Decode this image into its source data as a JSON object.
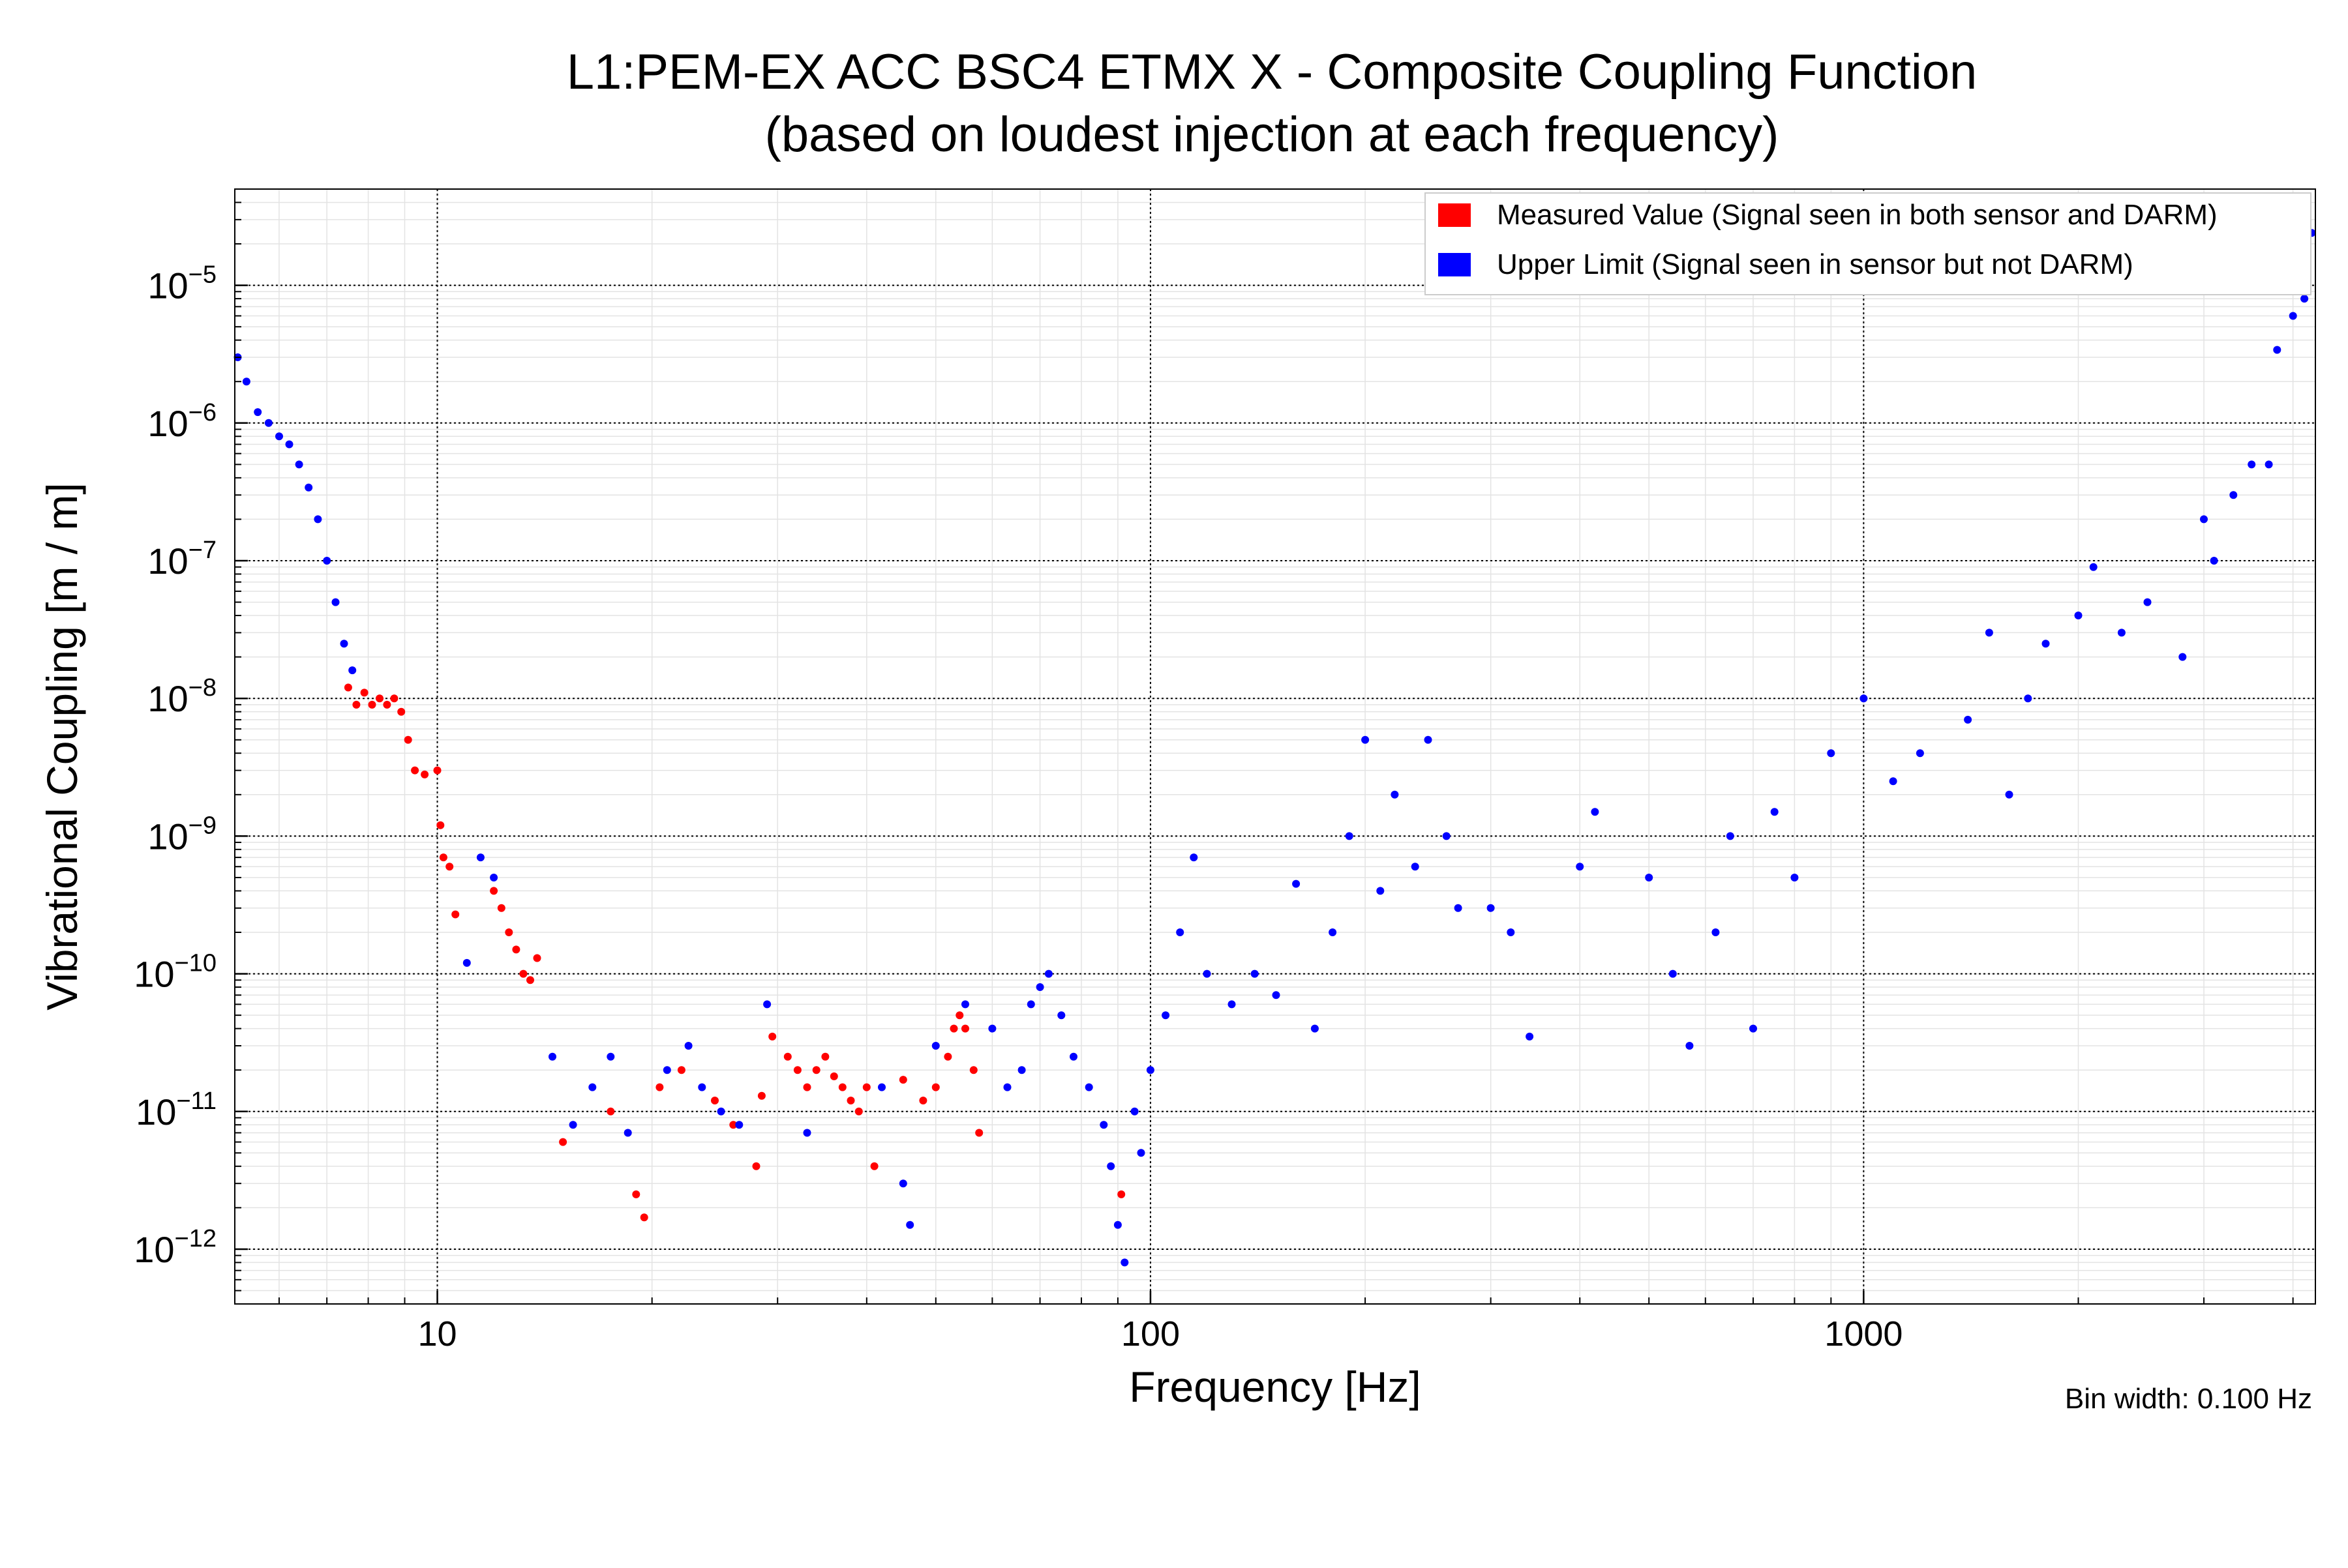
{
  "chart_data": {
    "type": "scatter",
    "title": "L1:PEM-EX ACC BSC4 ETMX X - Composite Coupling Function",
    "subtitle": "(based on loudest injection at each frequency)",
    "xlabel": "Frequency [Hz]",
    "ylabel": "Vibrational Coupling [m / m]",
    "xscale": "log",
    "yscale": "log",
    "xlim": [
      5.2,
      4300
    ],
    "ylim": [
      4e-13,
      5e-05
    ],
    "grid": true,
    "legend_position": "top-right",
    "footnote": "Bin width: 0.100 Hz",
    "x_ticks": [
      {
        "value": 10,
        "label": "10"
      },
      {
        "value": 100,
        "label": "100"
      },
      {
        "value": 1000,
        "label": "1000"
      }
    ],
    "y_ticks": [
      {
        "value": 1e-12,
        "base": "10",
        "exp": "−12"
      },
      {
        "value": 1e-11,
        "base": "10",
        "exp": "−11"
      },
      {
        "value": 1e-10,
        "base": "10",
        "exp": "−10"
      },
      {
        "value": 1e-09,
        "base": "10",
        "exp": "−9"
      },
      {
        "value": 1e-08,
        "base": "10",
        "exp": "−8"
      },
      {
        "value": 1e-07,
        "base": "10",
        "exp": "−7"
      },
      {
        "value": 1e-06,
        "base": "10",
        "exp": "−6"
      },
      {
        "value": 1e-05,
        "base": "10",
        "exp": "−5"
      }
    ],
    "series": [
      {
        "name": "Measured Value (Signal seen in both sensor and DARM)",
        "color": "#ff0000",
        "points": [
          [
            7.5,
            1.2e-08
          ],
          [
            7.7,
            9e-09
          ],
          [
            7.9,
            1.1e-08
          ],
          [
            8.1,
            9e-09
          ],
          [
            8.3,
            1e-08
          ],
          [
            8.5,
            9e-09
          ],
          [
            8.7,
            1e-08
          ],
          [
            8.9,
            8e-09
          ],
          [
            9.1,
            5e-09
          ],
          [
            9.3,
            3e-09
          ],
          [
            9.6,
            2.8e-09
          ],
          [
            10.0,
            3e-09
          ],
          [
            10.1,
            1.2e-09
          ],
          [
            10.2,
            7e-10
          ],
          [
            10.4,
            6e-10
          ],
          [
            10.6,
            2.7e-10
          ],
          [
            12.0,
            4e-10
          ],
          [
            12.3,
            3e-10
          ],
          [
            12.6,
            2e-10
          ],
          [
            12.9,
            1.5e-10
          ],
          [
            13.2,
            1e-10
          ],
          [
            13.5,
            9e-11
          ],
          [
            13.8,
            1.3e-10
          ],
          [
            15.0,
            6e-12
          ],
          [
            17.5,
            1e-11
          ],
          [
            19.0,
            2.5e-12
          ],
          [
            19.5,
            1.7e-12
          ],
          [
            20.5,
            1.5e-11
          ],
          [
            22.0,
            2e-11
          ],
          [
            24.5,
            1.2e-11
          ],
          [
            26.0,
            8e-12
          ],
          [
            28.0,
            4e-12
          ],
          [
            28.5,
            1.3e-11
          ],
          [
            29.5,
            3.5e-11
          ],
          [
            31.0,
            2.5e-11
          ],
          [
            32.0,
            2e-11
          ],
          [
            33.0,
            1.5e-11
          ],
          [
            34.0,
            2e-11
          ],
          [
            35.0,
            2.5e-11
          ],
          [
            36.0,
            1.8e-11
          ],
          [
            37.0,
            1.5e-11
          ],
          [
            38.0,
            1.2e-11
          ],
          [
            39.0,
            1e-11
          ],
          [
            40.0,
            1.5e-11
          ],
          [
            41.0,
            4e-12
          ],
          [
            45.0,
            1.7e-11
          ],
          [
            48.0,
            1.2e-11
          ],
          [
            50.0,
            1.5e-11
          ],
          [
            52.0,
            2.5e-11
          ],
          [
            53.0,
            4e-11
          ],
          [
            54.0,
            5e-11
          ],
          [
            55.0,
            4e-11
          ],
          [
            56.5,
            2e-11
          ],
          [
            57.5,
            7e-12
          ],
          [
            91.0,
            2.5e-12
          ]
        ]
      },
      {
        "name": "Upper Limit (Signal seen in sensor but not DARM)",
        "color": "#0000ff",
        "points": [
          [
            5.25,
            3e-06
          ],
          [
            5.4,
            2e-06
          ],
          [
            5.6,
            1.2e-06
          ],
          [
            5.8,
            1e-06
          ],
          [
            6.0,
            8e-07
          ],
          [
            6.2,
            7e-07
          ],
          [
            6.4,
            5e-07
          ],
          [
            6.6,
            3.4e-07
          ],
          [
            6.8,
            2e-07
          ],
          [
            7.0,
            1e-07
          ],
          [
            7.2,
            5e-08
          ],
          [
            7.4,
            2.5e-08
          ],
          [
            7.6,
            1.6e-08
          ],
          [
            11.0,
            1.2e-10
          ],
          [
            11.5,
            7e-10
          ],
          [
            12.0,
            5e-10
          ],
          [
            14.5,
            2.5e-11
          ],
          [
            15.5,
            8e-12
          ],
          [
            16.5,
            1.5e-11
          ],
          [
            17.5,
            2.5e-11
          ],
          [
            18.5,
            7e-12
          ],
          [
            21.0,
            2e-11
          ],
          [
            22.5,
            3e-11
          ],
          [
            23.5,
            1.5e-11
          ],
          [
            25.0,
            1e-11
          ],
          [
            26.5,
            8e-12
          ],
          [
            29.0,
            6e-11
          ],
          [
            33.0,
            7e-12
          ],
          [
            42.0,
            1.5e-11
          ],
          [
            45.0,
            3e-12
          ],
          [
            46.0,
            1.5e-12
          ],
          [
            50.0,
            3e-11
          ],
          [
            55.0,
            6e-11
          ],
          [
            60.0,
            4e-11
          ],
          [
            63.0,
            1.5e-11
          ],
          [
            66.0,
            2e-11
          ],
          [
            68.0,
            6e-11
          ],
          [
            70.0,
            8e-11
          ],
          [
            72.0,
            1e-10
          ],
          [
            75.0,
            5e-11
          ],
          [
            78.0,
            2.5e-11
          ],
          [
            82.0,
            1.5e-11
          ],
          [
            86.0,
            8e-12
          ],
          [
            88.0,
            4e-12
          ],
          [
            90.0,
            1.5e-12
          ],
          [
            92.0,
            8e-13
          ],
          [
            95.0,
            1e-11
          ],
          [
            97.0,
            5e-12
          ],
          [
            100.0,
            2e-11
          ],
          [
            105.0,
            5e-11
          ],
          [
            110.0,
            2e-10
          ],
          [
            115.0,
            7e-10
          ],
          [
            120.0,
            1e-10
          ],
          [
            130.0,
            6e-11
          ],
          [
            140.0,
            1e-10
          ],
          [
            150.0,
            7e-11
          ],
          [
            160.0,
            4.5e-10
          ],
          [
            170.0,
            4e-11
          ],
          [
            180.0,
            2e-10
          ],
          [
            190.0,
            1e-09
          ],
          [
            200.0,
            5e-09
          ],
          [
            210.0,
            4e-10
          ],
          [
            220.0,
            2e-09
          ],
          [
            235.0,
            6e-10
          ],
          [
            245.0,
            5e-09
          ],
          [
            260.0,
            1e-09
          ],
          [
            270.0,
            3e-10
          ],
          [
            300.0,
            3e-10
          ],
          [
            320.0,
            2e-10
          ],
          [
            340.0,
            3.5e-11
          ],
          [
            400.0,
            6e-10
          ],
          [
            420.0,
            1.5e-09
          ],
          [
            500.0,
            5e-10
          ],
          [
            540.0,
            1e-10
          ],
          [
            570.0,
            3e-11
          ],
          [
            620.0,
            2e-10
          ],
          [
            650.0,
            1e-09
          ],
          [
            700.0,
            4e-11
          ],
          [
            750.0,
            1.5e-09
          ],
          [
            800.0,
            5e-10
          ],
          [
            900.0,
            4e-09
          ],
          [
            1000.0,
            1e-08
          ],
          [
            1100.0,
            2.5e-09
          ],
          [
            1200.0,
            4e-09
          ],
          [
            1400.0,
            7e-09
          ],
          [
            1500.0,
            3e-08
          ],
          [
            1600.0,
            2e-09
          ],
          [
            1700.0,
            1e-08
          ],
          [
            1800.0,
            2.5e-08
          ],
          [
            2000.0,
            4e-08
          ],
          [
            2100.0,
            9e-08
          ],
          [
            2300.0,
            3e-08
          ],
          [
            2500.0,
            5e-08
          ],
          [
            2800.0,
            2e-08
          ],
          [
            3000.0,
            2e-07
          ],
          [
            3100.0,
            1e-07
          ],
          [
            3300.0,
            3e-07
          ],
          [
            3500.0,
            5e-07
          ],
          [
            3700.0,
            5e-07
          ],
          [
            3800.0,
            3.4e-06
          ],
          [
            4000.0,
            6e-06
          ],
          [
            4150.0,
            8e-06
          ],
          [
            4250.0,
            2.4e-05
          ]
        ]
      }
    ]
  }
}
